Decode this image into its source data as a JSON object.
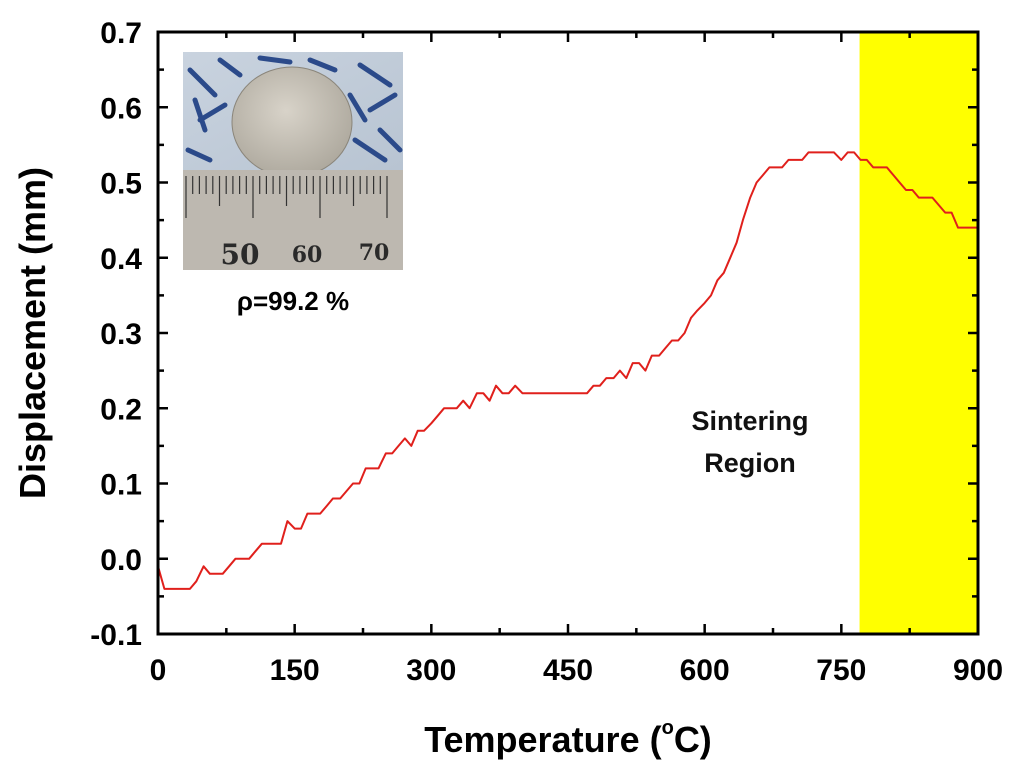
{
  "chart_data": {
    "type": "line",
    "title": "",
    "xlabel": "Temperature (",
    "xlabel_unit_sup": "o",
    "xlabel_unit_tail": "C)",
    "ylabel": "Displacement (mm)",
    "xlim": [
      0,
      900
    ],
    "ylim": [
      -0.1,
      0.7
    ],
    "xticks": [
      "0",
      "150",
      "300",
      "450",
      "600",
      "750",
      "900"
    ],
    "yticks": [
      "-0.1",
      "0.0",
      "0.1",
      "0.2",
      "0.3",
      "0.4",
      "0.5",
      "0.6",
      "0.7"
    ],
    "grid": false,
    "series": [
      {
        "color": "#e0201c",
        "x": [
          0,
          7,
          14,
          21,
          28,
          35,
          42,
          50,
          57,
          64,
          71,
          78,
          85,
          92,
          100,
          107,
          114,
          121,
          128,
          135,
          142,
          150,
          157,
          164,
          171,
          178,
          185,
          192,
          200,
          207,
          214,
          221,
          228,
          235,
          242,
          250,
          257,
          264,
          271,
          278,
          285,
          292,
          300,
          307,
          314,
          321,
          328,
          335,
          342,
          350,
          357,
          364,
          371,
          378,
          385,
          392,
          400,
          407,
          414,
          421,
          428,
          435,
          442,
          450,
          457,
          464,
          471,
          478,
          485,
          492,
          500,
          507,
          514,
          521,
          528,
          535,
          542,
          550,
          557,
          564,
          571,
          578,
          585,
          592,
          600,
          607,
          614,
          621,
          628,
          635,
          642,
          650,
          657,
          664,
          671,
          678,
          685,
          692,
          700,
          707,
          714,
          721,
          728,
          735,
          742,
          750,
          757,
          764,
          771,
          778,
          785,
          792,
          800,
          807,
          814,
          821,
          828,
          835,
          842,
          850,
          857,
          864,
          871,
          878,
          885,
          892,
          900
        ],
        "values": [
          -0.01,
          -0.04,
          -0.04,
          -0.04,
          -0.04,
          -0.04,
          -0.03,
          -0.01,
          -0.02,
          -0.02,
          -0.02,
          -0.01,
          0.0,
          0.0,
          0.0,
          0.01,
          0.02,
          0.02,
          0.02,
          0.02,
          0.05,
          0.04,
          0.04,
          0.06,
          0.06,
          0.06,
          0.07,
          0.08,
          0.08,
          0.09,
          0.1,
          0.1,
          0.12,
          0.12,
          0.12,
          0.14,
          0.14,
          0.15,
          0.16,
          0.15,
          0.17,
          0.17,
          0.18,
          0.19,
          0.2,
          0.2,
          0.2,
          0.21,
          0.2,
          0.22,
          0.22,
          0.21,
          0.23,
          0.22,
          0.22,
          0.23,
          0.22,
          0.22,
          0.22,
          0.22,
          0.22,
          0.22,
          0.22,
          0.22,
          0.22,
          0.22,
          0.22,
          0.23,
          0.23,
          0.24,
          0.24,
          0.25,
          0.24,
          0.26,
          0.26,
          0.25,
          0.27,
          0.27,
          0.28,
          0.29,
          0.29,
          0.3,
          0.32,
          0.33,
          0.34,
          0.35,
          0.37,
          0.38,
          0.4,
          0.42,
          0.45,
          0.48,
          0.5,
          0.51,
          0.52,
          0.52,
          0.52,
          0.53,
          0.53,
          0.53,
          0.54,
          0.54,
          0.54,
          0.54,
          0.54,
          0.53,
          0.54,
          0.54,
          0.53,
          0.53,
          0.52,
          0.52,
          0.52,
          0.51,
          0.5,
          0.49,
          0.49,
          0.48,
          0.48,
          0.48,
          0.47,
          0.46,
          0.46,
          0.44,
          0.44,
          0.44,
          0.44
        ]
      }
    ],
    "annotations": [
      {
        "text_lines": [
          "Sintering",
          "Region"
        ],
        "x": 645,
        "y": 0.18
      }
    ],
    "shaded_regions": [
      {
        "x0": 770,
        "x1": 900,
        "color": "#ffff00"
      }
    ],
    "inset": {
      "caption": "ρ=99.2 %",
      "ruler_labels": [
        "50",
        "60",
        "70"
      ]
    }
  }
}
